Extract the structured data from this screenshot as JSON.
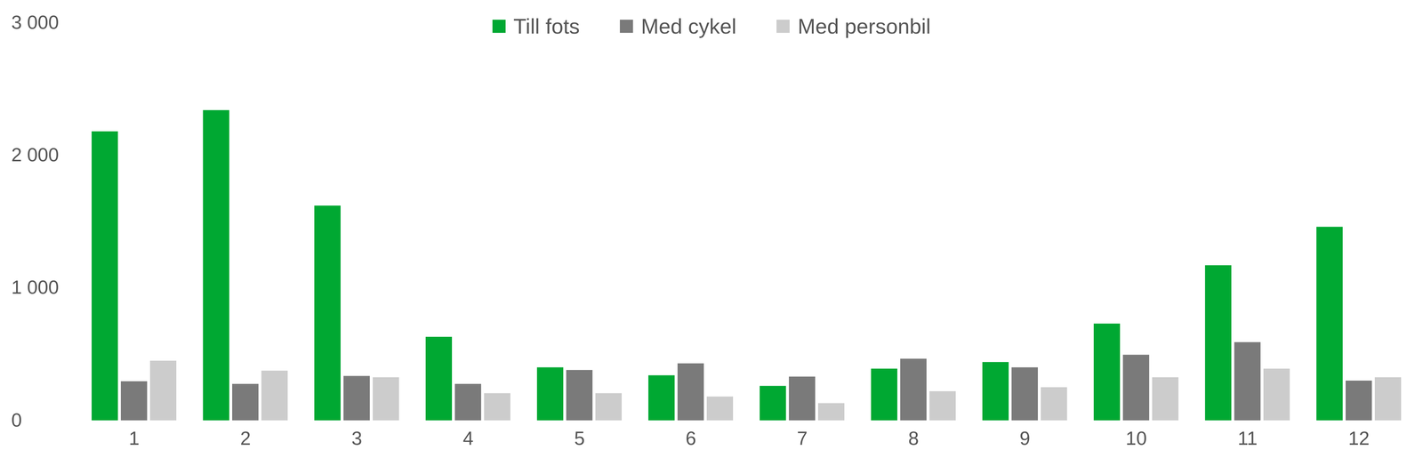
{
  "chart_data": {
    "type": "bar",
    "categories": [
      "1",
      "2",
      "3",
      "4",
      "5",
      "6",
      "7",
      "8",
      "9",
      "10",
      "11",
      "12"
    ],
    "series": [
      {
        "name": "Till fots",
        "color": "#00a832",
        "values": [
          2180,
          2340,
          1620,
          630,
          400,
          340,
          260,
          390,
          440,
          730,
          1170,
          1460
        ]
      },
      {
        "name": "Med cykel",
        "color": "#7a7a7a",
        "values": [
          295,
          275,
          335,
          275,
          380,
          430,
          330,
          465,
          400,
          495,
          590,
          300
        ]
      },
      {
        "name": "Med personbil",
        "color": "#cccccc",
        "values": [
          450,
          375,
          325,
          205,
          205,
          180,
          130,
          220,
          250,
          325,
          390,
          325
        ]
      }
    ],
    "ylim": [
      0,
      3000
    ],
    "yticks": [
      0,
      {
        "value": 1000,
        "label": "1 000"
      },
      {
        "value": 2000,
        "label": "2 000"
      },
      {
        "value": 3000,
        "label": "3 000"
      }
    ],
    "grid": false,
    "legend": "top"
  }
}
